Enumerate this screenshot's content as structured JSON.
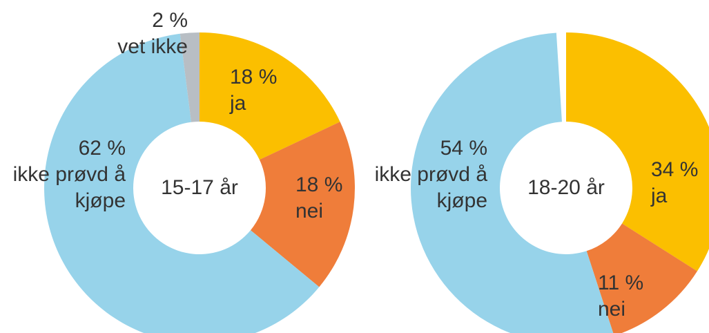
{
  "chart_data": [
    {
      "type": "pie",
      "title": "15-17 år",
      "categories": [
        "ja",
        "nei",
        "ikke prøvd å kjøpe",
        "vet ikke"
      ],
      "values": [
        18,
        18,
        62,
        2
      ],
      "value_labels": [
        "18 %",
        "18 %",
        "62 %",
        "2 %"
      ],
      "colors": [
        "#fbbf00",
        "#ef7d3a",
        "#97d3ea",
        "#b8bec4"
      ]
    },
    {
      "type": "pie",
      "title": "18-20 år",
      "categories": [
        "ja",
        "nei",
        "ikke prøvd å kjøpe"
      ],
      "values": [
        34,
        11,
        54
      ],
      "value_labels": [
        "34 %",
        "11 %",
        "54 %"
      ],
      "colors": [
        "#fbbf00",
        "#ef7d3a",
        "#97d3ea"
      ]
    }
  ]
}
